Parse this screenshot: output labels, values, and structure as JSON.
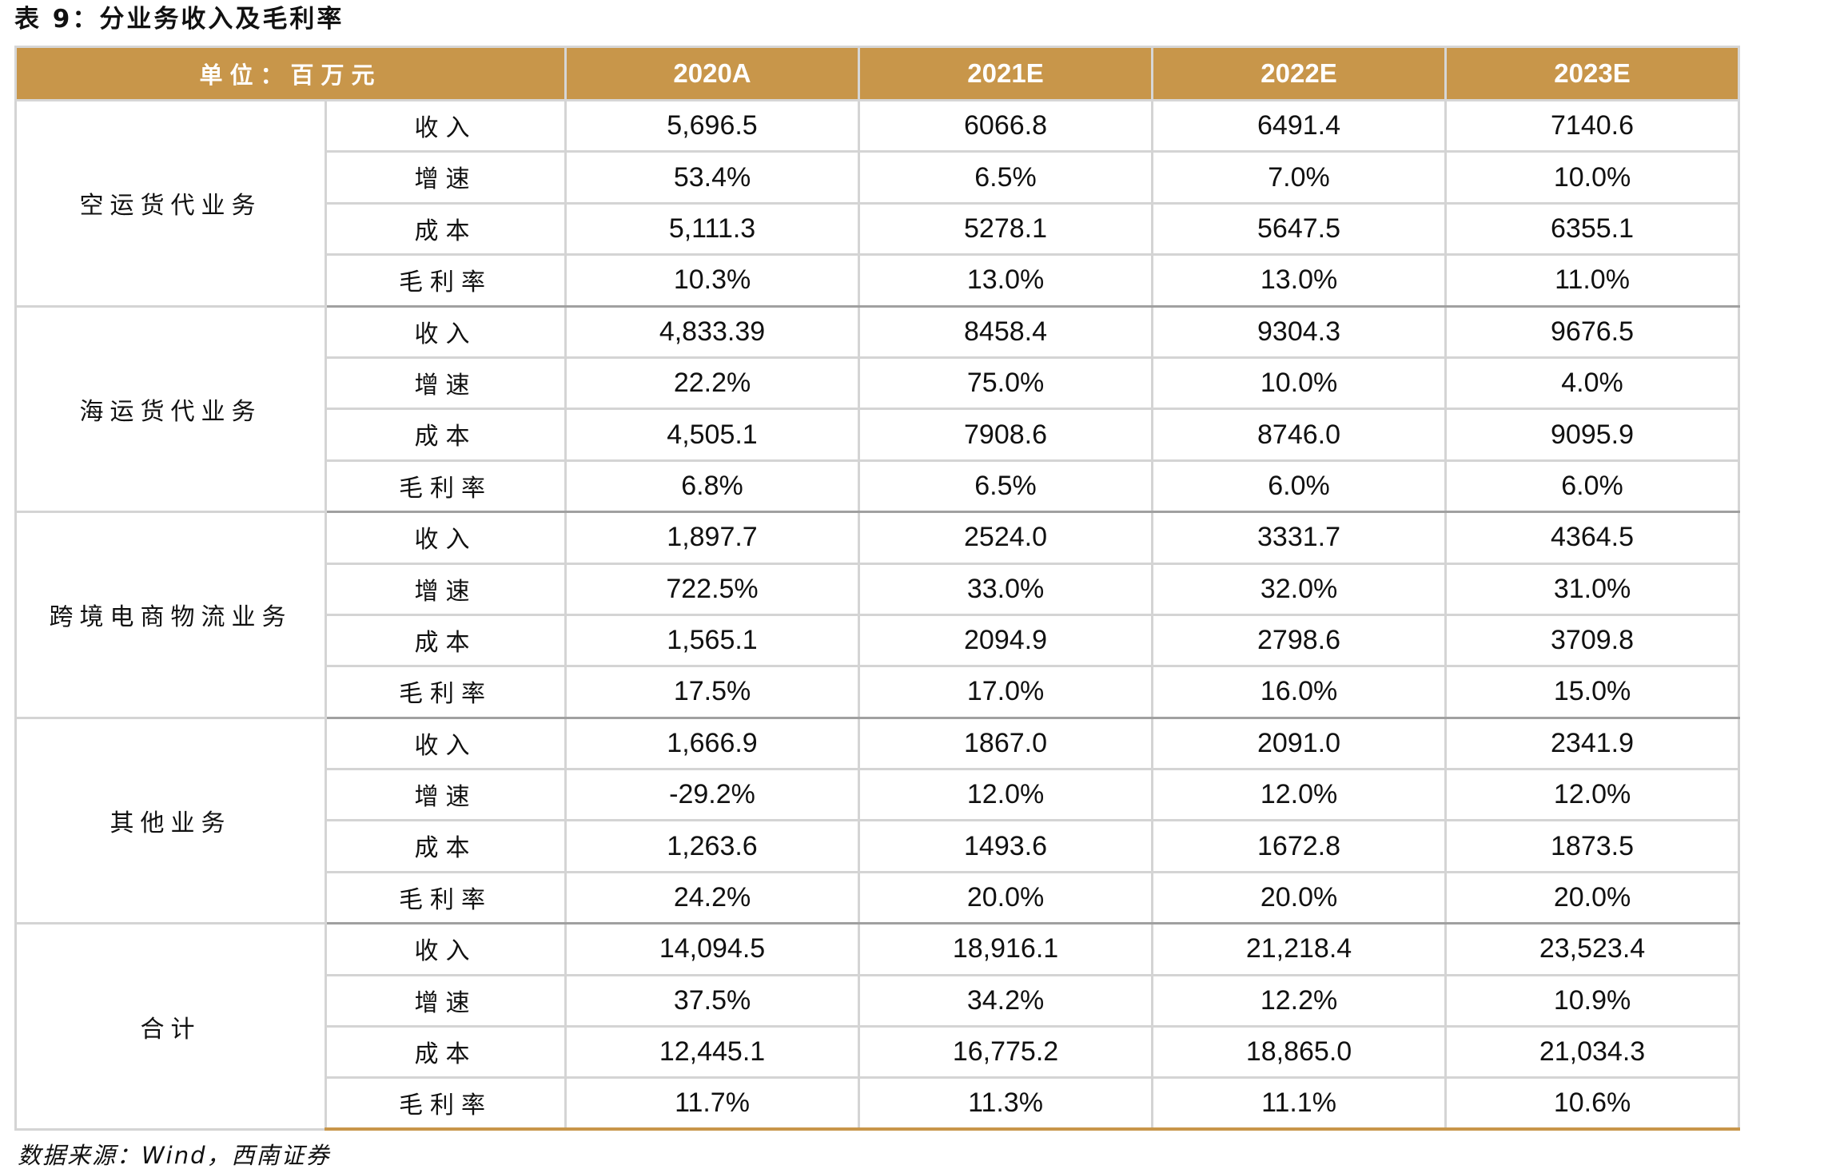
{
  "title": "表 9：分业务收入及毛利率",
  "header": {
    "unit_label": "单位：百万元",
    "years": [
      "2020A",
      "2021E",
      "2022E",
      "2023E"
    ]
  },
  "groups": [
    {
      "category": "空运货代业务",
      "rows": [
        {
          "metric": "收入",
          "values": [
            "5,696.5",
            "6066.8",
            "6491.4",
            "7140.6"
          ]
        },
        {
          "metric": "增速",
          "values": [
            "53.4%",
            "6.5%",
            "7.0%",
            "10.0%"
          ]
        },
        {
          "metric": "成本",
          "values": [
            "5,111.3",
            "5278.1",
            "5647.5",
            "6355.1"
          ]
        },
        {
          "metric": "毛利率",
          "values": [
            "10.3%",
            "13.0%",
            "13.0%",
            "11.0%"
          ]
        }
      ]
    },
    {
      "category": "海运货代业务",
      "rows": [
        {
          "metric": "收入",
          "values": [
            "4,833.39",
            "8458.4",
            "9304.3",
            "9676.5"
          ]
        },
        {
          "metric": "增速",
          "values": [
            "22.2%",
            "75.0%",
            "10.0%",
            "4.0%"
          ]
        },
        {
          "metric": "成本",
          "values": [
            "4,505.1",
            "7908.6",
            "8746.0",
            "9095.9"
          ]
        },
        {
          "metric": "毛利率",
          "values": [
            "6.8%",
            "6.5%",
            "6.0%",
            "6.0%"
          ]
        }
      ]
    },
    {
      "category": "跨境电商物流业务",
      "rows": [
        {
          "metric": "收入",
          "values": [
            "1,897.7",
            "2524.0",
            "3331.7",
            "4364.5"
          ]
        },
        {
          "metric": "增速",
          "values": [
            "722.5%",
            "33.0%",
            "32.0%",
            "31.0%"
          ]
        },
        {
          "metric": "成本",
          "values": [
            "1,565.1",
            "2094.9",
            "2798.6",
            "3709.8"
          ]
        },
        {
          "metric": "毛利率",
          "values": [
            "17.5%",
            "17.0%",
            "16.0%",
            "15.0%"
          ]
        }
      ]
    },
    {
      "category": "其他业务",
      "rows": [
        {
          "metric": "收入",
          "values": [
            "1,666.9",
            "1867.0",
            "2091.0",
            "2341.9"
          ]
        },
        {
          "metric": "增速",
          "values": [
            "-29.2%",
            "12.0%",
            "12.0%",
            "12.0%"
          ]
        },
        {
          "metric": "成本",
          "values": [
            "1,263.6",
            "1493.6",
            "1672.8",
            "1873.5"
          ]
        },
        {
          "metric": "毛利率",
          "values": [
            "24.2%",
            "20.0%",
            "20.0%",
            "20.0%"
          ]
        }
      ]
    },
    {
      "category": "合计",
      "rows": [
        {
          "metric": "收入",
          "values": [
            "14,094.5",
            "18,916.1",
            "21,218.4",
            "23,523.4"
          ]
        },
        {
          "metric": "增速",
          "values": [
            "37.5%",
            "34.2%",
            "12.2%",
            "10.9%"
          ]
        },
        {
          "metric": "成本",
          "values": [
            "12,445.1",
            "16,775.2",
            "18,865.0",
            "21,034.3"
          ]
        },
        {
          "metric": "毛利率",
          "values": [
            "11.7%",
            "11.3%",
            "11.1%",
            "10.6%"
          ]
        }
      ]
    }
  ],
  "source": "数据来源：Wind，西南证券",
  "colors": {
    "header_bg": "#c8964a",
    "header_text": "#ffffff",
    "grid": "#d4d4d4",
    "text": "#111111"
  }
}
